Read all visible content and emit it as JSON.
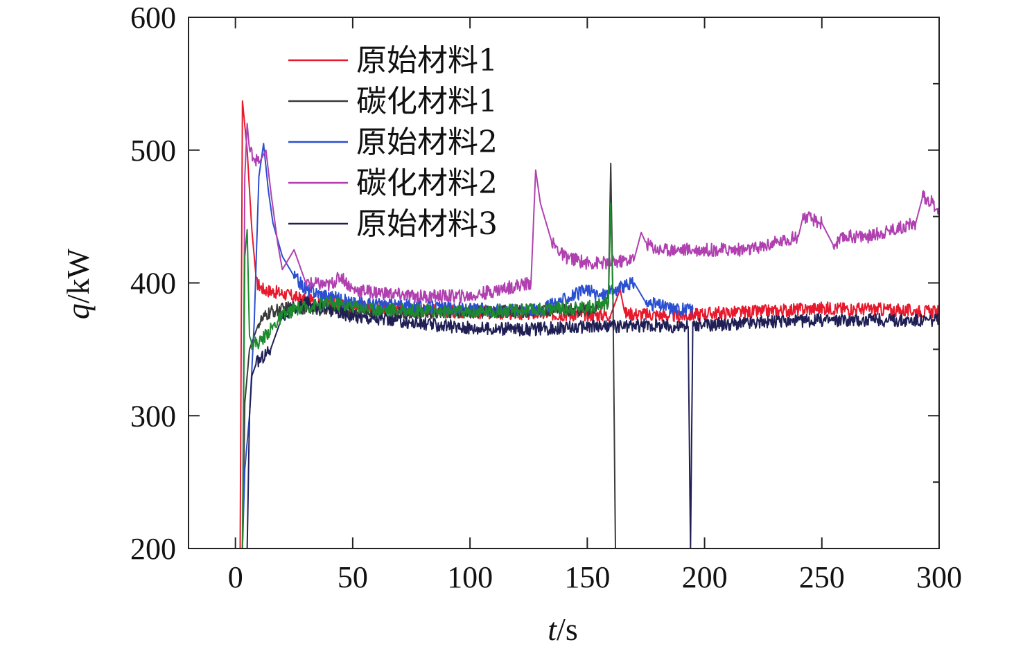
{
  "chart_data": {
    "type": "line",
    "title": "",
    "xlabel": "t/s",
    "ylabel": "q/kW",
    "xlabel_var": "t",
    "xlabel_unit": "/s",
    "ylabel_var": "q",
    "ylabel_unit": "/kW",
    "xlim": [
      -20,
      300
    ],
    "ylim": [
      200,
      600
    ],
    "xticks": [
      0,
      50,
      100,
      150,
      200,
      250,
      300
    ],
    "yticks": [
      200,
      300,
      400,
      500,
      600
    ],
    "grid": false,
    "legend_position": "top-left",
    "series": [
      {
        "name": "原始材料1",
        "color": "#e8192c",
        "points": [
          [
            2,
            200
          ],
          [
            3,
            537
          ],
          [
            5,
            500
          ],
          [
            7,
            440
          ],
          [
            9,
            400
          ],
          [
            12,
            395
          ],
          [
            20,
            392
          ],
          [
            30,
            387
          ],
          [
            50,
            382
          ],
          [
            75,
            380
          ],
          [
            100,
            378
          ],
          [
            120,
            377
          ],
          [
            150,
            376
          ],
          [
            160,
            376
          ],
          [
            164,
            395
          ],
          [
            166,
            377
          ],
          [
            190,
            375
          ],
          [
            200,
            377
          ],
          [
            220,
            378
          ],
          [
            250,
            381
          ],
          [
            275,
            380
          ],
          [
            300,
            378
          ]
        ]
      },
      {
        "name": "碳化材料1",
        "color": "#3a3a3a",
        "points": [
          [
            3,
            200
          ],
          [
            4,
            310
          ],
          [
            5,
            330
          ],
          [
            6,
            350
          ],
          [
            8,
            360
          ],
          [
            10,
            370
          ],
          [
            15,
            378
          ],
          [
            25,
            382
          ],
          [
            50,
            378
          ],
          [
            100,
            378
          ],
          [
            150,
            380
          ],
          [
            159,
            385
          ],
          [
            160,
            490
          ],
          [
            161,
            380
          ],
          [
            162,
            200
          ]
        ]
      },
      {
        "name": "原始材料2",
        "color": "#2a4fd0",
        "points": [
          [
            3,
            200
          ],
          [
            4,
            260
          ],
          [
            6,
            300
          ],
          [
            8,
            370
          ],
          [
            10,
            480
          ],
          [
            12,
            505
          ],
          [
            14,
            470
          ],
          [
            16,
            445
          ],
          [
            20,
            420
          ],
          [
            25,
            405
          ],
          [
            30,
            395
          ],
          [
            40,
            390
          ],
          [
            50,
            385
          ],
          [
            100,
            380
          ],
          [
            130,
            380
          ],
          [
            150,
            395
          ],
          [
            155,
            390
          ],
          [
            170,
            400
          ],
          [
            175,
            385
          ],
          [
            190,
            380
          ],
          [
            195,
            380
          ]
        ]
      },
      {
        "name": "碳化材料2",
        "color": "#b040b0",
        "points": [
          [
            3,
            200
          ],
          [
            4,
            480
          ],
          [
            5,
            520
          ],
          [
            6,
            500
          ],
          [
            8,
            495
          ],
          [
            10,
            490
          ],
          [
            13,
            500
          ],
          [
            15,
            470
          ],
          [
            18,
            430
          ],
          [
            20,
            410
          ],
          [
            25,
            425
          ],
          [
            30,
            400
          ],
          [
            40,
            398
          ],
          [
            45,
            405
          ],
          [
            50,
            395
          ],
          [
            75,
            390
          ],
          [
            100,
            390
          ],
          [
            120,
            398
          ],
          [
            126,
            400
          ],
          [
            128,
            485
          ],
          [
            130,
            460
          ],
          [
            135,
            430
          ],
          [
            140,
            420
          ],
          [
            150,
            415
          ],
          [
            160,
            415
          ],
          [
            170,
            418
          ],
          [
            173,
            438
          ],
          [
            175,
            430
          ],
          [
            180,
            425
          ],
          [
            200,
            425
          ],
          [
            220,
            425
          ],
          [
            230,
            430
          ],
          [
            240,
            435
          ],
          [
            242,
            450
          ],
          [
            250,
            445
          ],
          [
            255,
            428
          ],
          [
            260,
            435
          ],
          [
            270,
            435
          ],
          [
            280,
            440
          ],
          [
            290,
            445
          ],
          [
            293,
            465
          ],
          [
            296,
            462
          ],
          [
            300,
            455
          ]
        ]
      },
      {
        "name": "原始材料3",
        "color": "#1f1f55",
        "points": [
          [
            5,
            200
          ],
          [
            6,
            300
          ],
          [
            7,
            330
          ],
          [
            9,
            340
          ],
          [
            12,
            345
          ],
          [
            15,
            350
          ],
          [
            20,
            375
          ],
          [
            30,
            385
          ],
          [
            40,
            380
          ],
          [
            50,
            375
          ],
          [
            75,
            370
          ],
          [
            100,
            366
          ],
          [
            125,
            365
          ],
          [
            150,
            367
          ],
          [
            175,
            368
          ],
          [
            193,
            367
          ],
          [
            194,
            200
          ],
          [
            195,
            368
          ],
          [
            220,
            370
          ],
          [
            250,
            372
          ],
          [
            275,
            372
          ],
          [
            300,
            372
          ]
        ]
      },
      {
        "name": "",
        "color": "#1e8a2e",
        "points": [
          [
            3,
            200
          ],
          [
            4,
            420
          ],
          [
            5,
            440
          ],
          [
            6,
            360
          ],
          [
            7,
            355
          ],
          [
            10,
            355
          ],
          [
            15,
            365
          ],
          [
            20,
            375
          ],
          [
            25,
            380
          ],
          [
            40,
            385
          ],
          [
            60,
            380
          ],
          [
            100,
            378
          ],
          [
            130,
            380
          ],
          [
            150,
            382
          ],
          [
            159,
            385
          ],
          [
            160,
            460
          ],
          [
            161,
            385
          ]
        ]
      }
    ]
  }
}
